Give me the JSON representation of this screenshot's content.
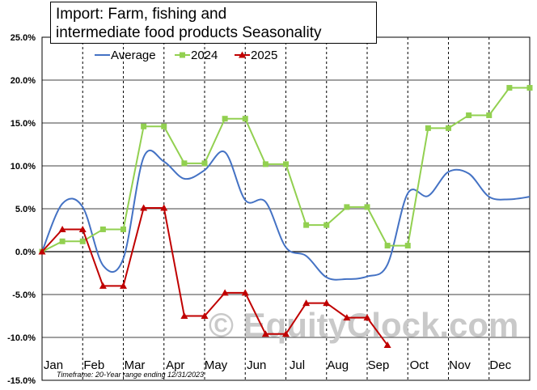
{
  "chart_data": {
    "type": "line",
    "title_line1": "Import:  Farm, fishing and",
    "title_line2": "intermediate  food products Seasonality",
    "categories": [
      "Jan",
      "Feb",
      "Mar",
      "Apr",
      "May",
      "Jun",
      "Jul",
      "Aug",
      "Sep",
      "Oct",
      "Nov",
      "Dec"
    ],
    "yticks": [
      "25.0%",
      "20.0%",
      "15.0%",
      "10.0%",
      "5.0%",
      "0.0%",
      "-5.0%",
      "-10.0%",
      "-15.0%"
    ],
    "ylim": [
      -15,
      25
    ],
    "xlim": [
      0,
      12
    ],
    "grid": true,
    "legend_position": "top",
    "footnote": "Timeframe: 20-Year range ending 12/31/2023",
    "watermark": "© EquityClock.com",
    "series": [
      {
        "name": "Average",
        "color": "#4472c4",
        "marker": "none",
        "x": [
          0,
          0.5,
          1,
          1.5,
          2,
          2.5,
          3,
          3.5,
          4,
          4.5,
          5,
          5.5,
          6,
          6.5,
          7,
          7.5,
          8,
          8.5,
          9,
          9.5,
          10,
          10.5,
          11,
          11.5,
          12
        ],
        "y": [
          0.0,
          5.6,
          5.2,
          -1.6,
          -0.8,
          11.0,
          10.5,
          8.5,
          9.5,
          11.6,
          6.0,
          5.8,
          0.5,
          -0.5,
          -3.0,
          -3.2,
          -2.9,
          -1.5,
          6.8,
          6.5,
          9.3,
          9.1,
          6.4,
          6.1,
          6.4
        ]
      },
      {
        "name": "2024",
        "color": "#92d050",
        "marker": "square",
        "x": [
          0,
          0.5,
          1,
          1.5,
          2,
          2.5,
          3,
          3.5,
          4,
          4.5,
          5,
          5.5,
          6,
          6.5,
          7,
          7.5,
          8,
          8.5,
          9,
          9.5,
          10,
          10.5,
          11,
          11.5,
          12
        ],
        "y": [
          0.0,
          1.2,
          1.2,
          2.6,
          2.6,
          14.6,
          14.6,
          10.3,
          10.3,
          15.5,
          15.5,
          10.2,
          10.2,
          3.1,
          3.1,
          5.2,
          5.2,
          0.7,
          0.7,
          14.4,
          14.4,
          15.9,
          15.9,
          19.1,
          19.1
        ]
      },
      {
        "name": "2025",
        "color": "#c00000",
        "marker": "triangle",
        "x": [
          0,
          0.5,
          1,
          1.5,
          2,
          2.5,
          3,
          3.5,
          4,
          4.5,
          5,
          5.5,
          6,
          6.5,
          7,
          7.5,
          8,
          8.5
        ],
        "y": [
          0.0,
          2.6,
          2.6,
          -4.0,
          -4.0,
          5.1,
          5.1,
          -7.5,
          -7.5,
          -4.8,
          -4.8,
          -9.6,
          -9.6,
          -6.0,
          -6.0,
          -7.7,
          -7.7,
          -10.9
        ]
      }
    ]
  }
}
